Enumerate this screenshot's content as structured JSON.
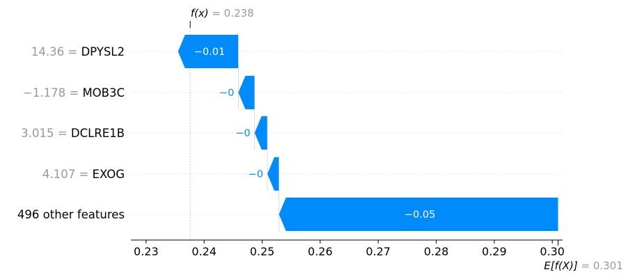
{
  "chart_data": {
    "type": "waterfall",
    "features": [
      {
        "value_text": "14.36",
        "name": "DPYSL2",
        "contribution": -0.0104,
        "label": "−0.01"
      },
      {
        "value_text": "−1.178",
        "name": "MOB3C",
        "contribution": -0.0028,
        "label": "−0"
      },
      {
        "value_text": "3.015",
        "name": "DCLRE1B",
        "contribution": -0.0022,
        "label": "−0"
      },
      {
        "value_text": "4.107",
        "name": "EXOG",
        "contribution": -0.002,
        "label": "−0"
      },
      {
        "value_text": "",
        "name": "496 other features",
        "contribution": -0.0481,
        "label": "−0.05"
      }
    ],
    "fx_label": "f(x)",
    "fx_value": "= 0.238",
    "fx": 0.2376,
    "efx_label": "E[f(X)]",
    "efx_value": "= 0.301",
    "efx": 0.301,
    "xticks": [
      "0.23",
      "0.24",
      "0.25",
      "0.26",
      "0.27",
      "0.28",
      "0.29",
      "0.30"
    ],
    "xtick_values": [
      0.23,
      0.24,
      0.25,
      0.26,
      0.27,
      0.28,
      0.29,
      0.3
    ],
    "xlim": [
      0.2275,
      0.3013
    ],
    "colors": {
      "negative": "#008bfb",
      "label_gray": "#999999",
      "text": "#000000",
      "grid": "#cccccc"
    }
  }
}
